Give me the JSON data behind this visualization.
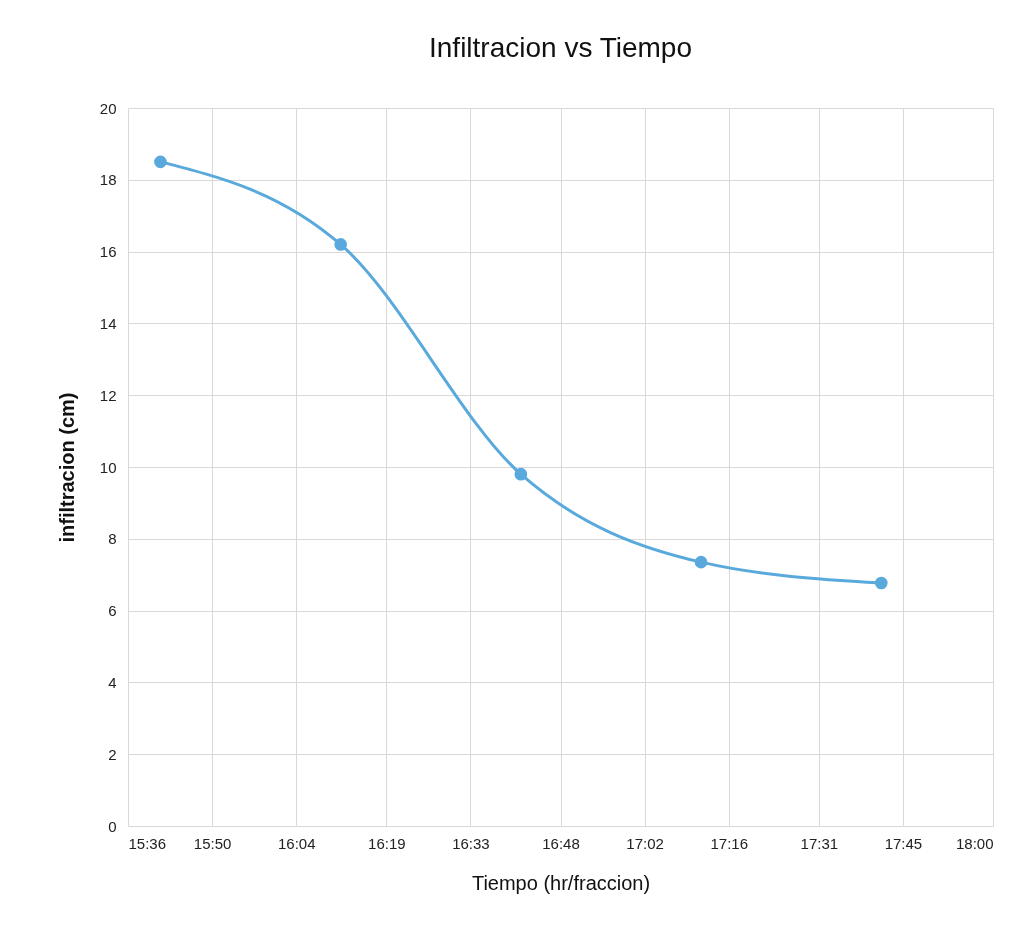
{
  "chart_data": {
    "type": "line",
    "title": "Infiltracion vs Tiempo",
    "xlabel": "Tiempo (hr/fraccion)",
    "ylabel": "infiltracion (cm)",
    "x": [
      15.69,
      16.19,
      16.69,
      17.19,
      17.69
    ],
    "series": [
      {
        "color": "#5aa9dc",
        "values": [
          18.5,
          16.2,
          9.8,
          7.35,
          6.77
        ]
      }
    ],
    "xlim": [
      15.6,
      18.0
    ],
    "xticks": [
      {
        "value": 15.6,
        "label": "15:36"
      },
      {
        "value": 15.8333,
        "label": "15:50"
      },
      {
        "value": 16.0667,
        "label": "16:04"
      },
      {
        "value": 16.3167,
        "label": "16:19"
      },
      {
        "value": 16.55,
        "label": "16:33"
      },
      {
        "value": 16.8,
        "label": "16:48"
      },
      {
        "value": 17.0333,
        "label": "17:02"
      },
      {
        "value": 17.2667,
        "label": "17:16"
      },
      {
        "value": 17.5167,
        "label": "17:31"
      },
      {
        "value": 17.75,
        "label": "17:45"
      },
      {
        "value": 18.0,
        "label": "18:00"
      }
    ],
    "ylim": [
      0,
      20
    ],
    "yticks": [
      0,
      2,
      4,
      6,
      8,
      10,
      12,
      14,
      16,
      18,
      20
    ],
    "grid": true,
    "marker": "circle",
    "line_style": "solid"
  }
}
